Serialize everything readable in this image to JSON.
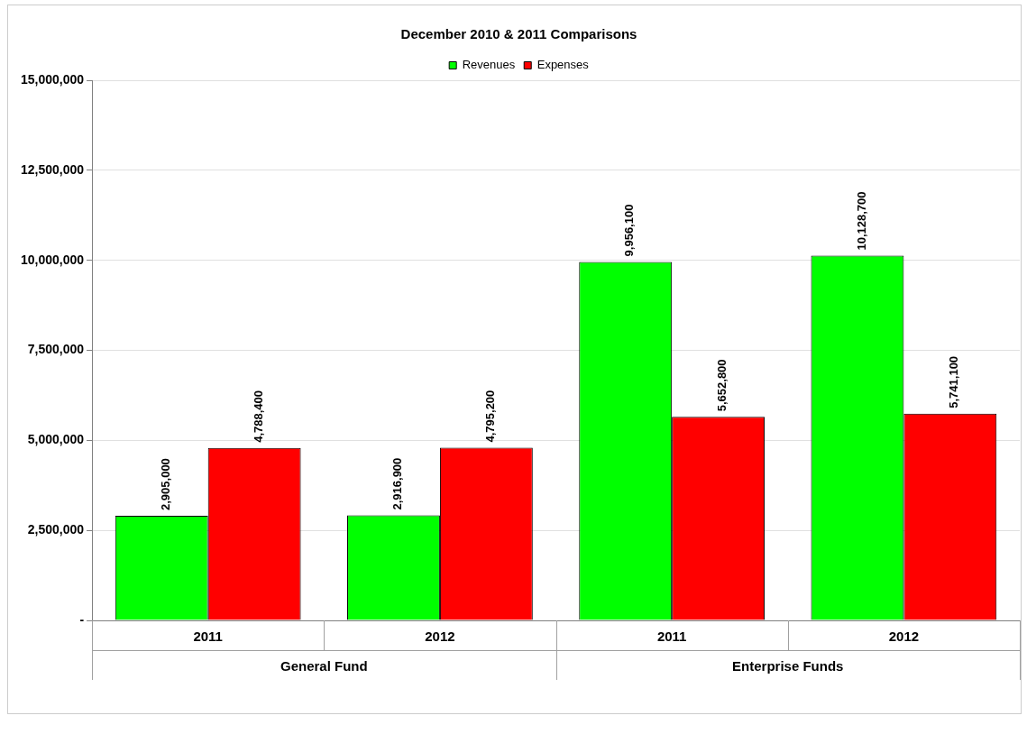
{
  "chart_data": {
    "type": "bar",
    "title": "December 2010 & 2011 Comparisons",
    "categories": [
      "2011",
      "2012",
      "2011",
      "2012"
    ],
    "series": [
      {
        "name": "Revenues",
        "color": "#00ff00",
        "values": [
          2905000,
          2916900,
          9956100,
          10128700
        ],
        "value_labels": [
          "2,905,000",
          "2,916,900",
          "9,956,100",
          "10,128,700"
        ]
      },
      {
        "name": "Expenses",
        "color": "#ff0000",
        "values": [
          4788400,
          4795200,
          5652800,
          5741100
        ],
        "value_labels": [
          "4,788,400",
          "4,795,200",
          "5,652,800",
          "5,741,100"
        ]
      }
    ],
    "ylim": [
      0,
      15000000
    ],
    "yticks": [
      {
        "value": 0,
        "label": "-"
      },
      {
        "value": 2500000,
        "label": "2,500,000"
      },
      {
        "value": 5000000,
        "label": "5,000,000"
      },
      {
        "value": 7500000,
        "label": "7,500,000"
      },
      {
        "value": 10000000,
        "label": "10,000,000"
      },
      {
        "value": 12500000,
        "label": "12,500,000"
      },
      {
        "value": 15000000,
        "label": "15,000,000"
      }
    ],
    "grid": "y",
    "legend": "top",
    "annotations": [
      "General Fund",
      "Enterprise Funds"
    ]
  }
}
